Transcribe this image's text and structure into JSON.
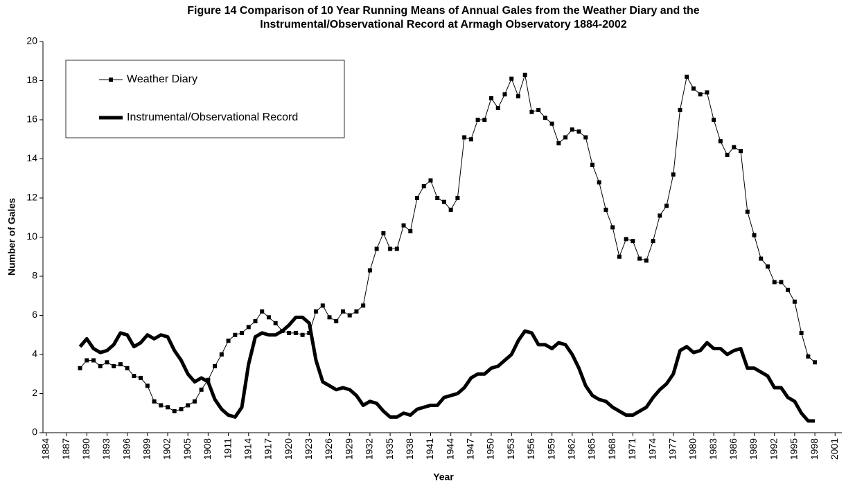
{
  "chart_data": {
    "type": "line",
    "title": [
      "Figure 14 Comparison of 10 Year Running Means of Annual Gales from the Weather Diary and the",
      "Instrumental/Observational Record at Armagh Observatory 1884-2002"
    ],
    "x_label": "Year",
    "y_label": "Number of Gales",
    "x": [
      1889,
      1890,
      1891,
      1892,
      1893,
      1894,
      1895,
      1896,
      1897,
      1898,
      1899,
      1900,
      1901,
      1902,
      1903,
      1904,
      1905,
      1906,
      1907,
      1908,
      1909,
      1910,
      1911,
      1912,
      1913,
      1914,
      1915,
      1916,
      1917,
      1918,
      1919,
      1920,
      1921,
      1922,
      1923,
      1924,
      1925,
      1926,
      1927,
      1928,
      1929,
      1930,
      1931,
      1932,
      1933,
      1934,
      1935,
      1936,
      1937,
      1938,
      1939,
      1940,
      1941,
      1942,
      1943,
      1944,
      1945,
      1946,
      1947,
      1948,
      1949,
      1950,
      1951,
      1952,
      1953,
      1954,
      1955,
      1956,
      1957,
      1958,
      1959,
      1960,
      1961,
      1962,
      1963,
      1964,
      1965,
      1966,
      1967,
      1968,
      1969,
      1970,
      1971,
      1972,
      1973,
      1974,
      1975,
      1976,
      1977,
      1978,
      1979,
      1980,
      1981,
      1982,
      1983,
      1984,
      1985,
      1986,
      1987,
      1988,
      1989,
      1990,
      1991,
      1992,
      1993,
      1994,
      1995,
      1996,
      1997,
      1998
    ],
    "series": [
      {
        "name": "Weather Diary",
        "color": "#000000",
        "line_width": 1,
        "marker": "square",
        "values": [
          3.3,
          3.7,
          3.7,
          3.4,
          3.6,
          3.4,
          3.5,
          3.3,
          2.9,
          2.8,
          2.4,
          1.6,
          1.4,
          1.3,
          1.1,
          1.2,
          1.4,
          1.6,
          2.2,
          2.7,
          3.4,
          4.0,
          4.7,
          5.0,
          5.1,
          5.4,
          5.7,
          6.2,
          5.9,
          5.6,
          5.2,
          5.1,
          5.1,
          5.0,
          5.1,
          6.2,
          6.5,
          5.9,
          5.7,
          6.2,
          6.0,
          6.2,
          6.5,
          8.3,
          9.4,
          10.2,
          9.4,
          9.4,
          10.6,
          10.3,
          12.0,
          12.6,
          12.9,
          12.0,
          11.8,
          11.4,
          12.0,
          15.1,
          15.0,
          16.0,
          16.0,
          17.1,
          16.6,
          17.3,
          18.1,
          17.2,
          18.3,
          16.4,
          16.5,
          16.1,
          15.8,
          14.8,
          15.1,
          15.5,
          15.4,
          15.1,
          13.7,
          12.8,
          11.4,
          10.5,
          9.0,
          9.9,
          9.8,
          8.9,
          8.8,
          9.8,
          11.1,
          11.6,
          13.2,
          16.5,
          18.2,
          17.6,
          17.3,
          17.4,
          16.0,
          14.9,
          14.2,
          14.6,
          14.4,
          11.3,
          10.1,
          8.9,
          8.5,
          7.7,
          7.7,
          7.3,
          6.7,
          5.1,
          3.9,
          3.6
        ]
      },
      {
        "name": "Instrumental/Observational Record",
        "color": "#000000",
        "line_width": 5,
        "values": [
          4.4,
          4.8,
          4.3,
          4.1,
          4.2,
          4.5,
          5.1,
          5.0,
          4.4,
          4.6,
          5.0,
          4.8,
          5.0,
          4.9,
          4.2,
          3.7,
          3.0,
          2.6,
          2.8,
          2.6,
          1.7,
          1.2,
          0.9,
          0.8,
          1.3,
          3.5,
          4.9,
          5.1,
          5.0,
          5.0,
          5.2,
          5.5,
          5.9,
          5.9,
          5.6,
          3.7,
          2.6,
          2.4,
          2.2,
          2.3,
          2.2,
          1.9,
          1.4,
          1.6,
          1.5,
          1.1,
          0.8,
          0.8,
          1.0,
          0.9,
          1.2,
          1.3,
          1.4,
          1.4,
          1.8,
          1.9,
          2.0,
          2.3,
          2.8,
          3.0,
          3.0,
          3.3,
          3.4,
          3.7,
          4.0,
          4.7,
          5.2,
          5.1,
          4.5,
          4.5,
          4.3,
          4.6,
          4.5,
          4.0,
          3.3,
          2.4,
          1.9,
          1.7,
          1.6,
          1.3,
          1.1,
          0.9,
          0.9,
          1.1,
          1.3,
          1.8,
          2.2,
          2.5,
          3.0,
          4.2,
          4.4,
          4.1,
          4.2,
          4.6,
          4.3,
          4.3,
          4.0,
          4.2,
          4.3,
          3.3,
          3.3,
          3.1,
          2.9,
          2.3,
          2.3,
          1.8,
          1.6,
          1.0,
          0.6,
          0.6
        ]
      }
    ],
    "xlim": [
      1883.5,
      2002
    ],
    "xticks": [
      1884,
      1887,
      1890,
      1893,
      1896,
      1899,
      1902,
      1905,
      1908,
      1911,
      1914,
      1917,
      1920,
      1923,
      1926,
      1929,
      1932,
      1935,
      1938,
      1941,
      1944,
      1947,
      1950,
      1953,
      1956,
      1959,
      1962,
      1965,
      1968,
      1971,
      1974,
      1977,
      1980,
      1983,
      1986,
      1989,
      1992,
      1995,
      1998,
      2001
    ],
    "ylim": [
      0,
      20
    ],
    "yticks": [
      0,
      2,
      4,
      6,
      8,
      10,
      12,
      14,
      16,
      18,
      20
    ],
    "grid": false,
    "legend": "upper left"
  }
}
